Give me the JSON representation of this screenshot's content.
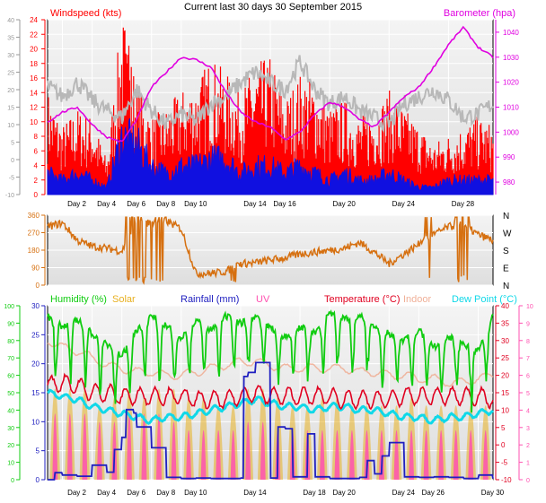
{
  "title": "Current last 30 days 30 September 2015",
  "colors": {
    "wind_avg": "#1010e0",
    "wind_gust": "#ff0000",
    "wind_max": "#b8b8b8",
    "barometer": "#e000e0",
    "direction": "#d67010",
    "humidity": "#10cc10",
    "solar": "#e8b020",
    "rainfall": "#2020c0",
    "uv": "#ff50b0",
    "temperature": "#e00020",
    "indoor": "#f0b098",
    "dewpoint": "#10d8e8"
  },
  "chart_data": [
    {
      "type": "line",
      "name": "wind-barometer",
      "legend": {
        "windspeed": "Windspeed (kts)",
        "barometer": "Barometer (hpa)"
      },
      "left_axis": {
        "range": [
          0,
          24
        ],
        "ticks": [
          "0",
          "2",
          "4",
          "6",
          "8",
          "10",
          "12",
          "14",
          "16",
          "18",
          "20",
          "22",
          "24"
        ]
      },
      "far_left_axis": {
        "range": [
          -10,
          40
        ],
        "ticks": [
          "-10",
          "-5",
          "0",
          "5",
          "10",
          "15",
          "20",
          "25",
          "30",
          "35",
          "40"
        ]
      },
      "right_axis": {
        "range": [
          975,
          1045
        ],
        "ticks": [
          "980",
          "990",
          "1000",
          "1010",
          "1020",
          "1030",
          "1040"
        ]
      },
      "x_range": [
        1,
        31
      ],
      "x_ticks": [
        {
          "day": 2,
          "label": "Day 2"
        },
        {
          "day": 4,
          "label": "Day 4"
        },
        {
          "day": 6,
          "label": "Day 6"
        },
        {
          "day": 8,
          "label": "Day 8"
        },
        {
          "day": 10,
          "label": "Day 10"
        },
        {
          "day": 14,
          "label": "Day 14"
        },
        {
          "day": 16,
          "label": "Day 16"
        },
        {
          "day": 20,
          "label": "Day 20"
        },
        {
          "day": 24,
          "label": "Day 24"
        },
        {
          "day": 28,
          "label": "Day 28"
        }
      ],
      "series": [
        {
          "key": "barometer",
          "axis": "right",
          "x": [
            1,
            2,
            3,
            4,
            5,
            6,
            7,
            8,
            9,
            10,
            11,
            12,
            13,
            14,
            15,
            16,
            17,
            18,
            19,
            20,
            21,
            22,
            23,
            24,
            25,
            26,
            27,
            28,
            29,
            30,
            31
          ],
          "values": [
            1004,
            1008,
            1010,
            1003,
            998,
            996,
            1005,
            1018,
            1024,
            1030,
            1029,
            1026,
            1016,
            1008,
            1004,
            1002,
            997,
            1000,
            1007,
            1012,
            1010,
            1005,
            1002,
            1008,
            1014,
            1018,
            1026,
            1035,
            1042,
            1034,
            1030
          ]
        },
        {
          "key": "wind_max",
          "axis": "far-left",
          "x": [
            1,
            2,
            3,
            4,
            5,
            6,
            7,
            8,
            9,
            10,
            11,
            12,
            13,
            14,
            15,
            16,
            17,
            18,
            19,
            20,
            21,
            22,
            23,
            24,
            25,
            26,
            27,
            28,
            29,
            30,
            31
          ],
          "values": [
            21,
            18,
            22,
            17,
            14,
            12,
            20,
            14,
            10,
            13,
            11,
            16,
            18,
            22,
            25,
            22,
            20,
            28,
            20,
            16,
            18,
            14,
            12,
            10,
            16,
            18,
            20,
            17,
            12,
            13,
            16
          ]
        },
        {
          "key": "wind_gust",
          "axis": "left",
          "x": [
            1,
            2,
            3,
            4,
            5,
            6,
            7,
            8,
            9,
            10,
            11,
            12,
            13,
            14,
            15,
            16,
            17,
            18,
            19,
            20,
            21,
            22,
            23,
            24,
            25,
            26,
            27,
            28,
            29,
            30,
            31
          ],
          "values": [
            12,
            8,
            10,
            9,
            4,
            21,
            13,
            9,
            10,
            12,
            13,
            16,
            14,
            12,
            15,
            16,
            11,
            14,
            13,
            10,
            11,
            9,
            10,
            12,
            10,
            8,
            6,
            7,
            8,
            9,
            8
          ]
        },
        {
          "key": "wind_avg",
          "axis": "left",
          "x": [
            1,
            2,
            3,
            4,
            5,
            6,
            7,
            8,
            9,
            10,
            11,
            12,
            13,
            14,
            15,
            16,
            17,
            18,
            19,
            20,
            21,
            22,
            23,
            24,
            25,
            26,
            27,
            28,
            29,
            30,
            31
          ],
          "values": [
            3,
            2,
            3,
            2,
            1,
            8,
            7,
            4,
            3,
            4,
            4,
            5,
            5,
            3,
            4,
            4,
            3,
            4,
            3,
            2,
            3,
            2,
            2,
            3,
            2,
            1,
            1,
            2,
            2,
            2,
            2
          ]
        }
      ]
    },
    {
      "type": "scatter",
      "name": "wind-direction",
      "left_axis": {
        "range": [
          0,
          360
        ],
        "ticks": [
          "0",
          "90",
          "180",
          "270",
          "360"
        ]
      },
      "right_labels": [
        "N",
        "W",
        "S",
        "E",
        "N"
      ],
      "x_range": [
        1,
        31
      ],
      "series": [
        {
          "key": "direction",
          "x": [
            1,
            2,
            3,
            4,
            5,
            6,
            7,
            8,
            9,
            10,
            11,
            12,
            13,
            14,
            15,
            16,
            17,
            18,
            19,
            20,
            21,
            22,
            23,
            24,
            25,
            26,
            27,
            28,
            29,
            30,
            31
          ],
          "values": [
            300,
            320,
            230,
            200,
            190,
            175,
            320,
            320,
            330,
            290,
            60,
            60,
            70,
            110,
            115,
            130,
            140,
            160,
            170,
            180,
            190,
            220,
            170,
            110,
            160,
            210,
            260,
            300,
            310,
            260,
            230
          ]
        }
      ]
    },
    {
      "type": "line",
      "name": "humidity-temperature",
      "legend": {
        "humidity": "Humidity (%)",
        "solar": "Solar",
        "rainfall": "Rainfall (mm)",
        "uv": "UV",
        "temperature": "Temperature (°C)",
        "indoor": "Indoor",
        "dewpoint": "Dew Point (°C)"
      },
      "humidity_axis": {
        "range": [
          0,
          100
        ],
        "ticks": [
          "0",
          "10",
          "20",
          "30",
          "40",
          "50",
          "60",
          "70",
          "80",
          "90",
          "100"
        ]
      },
      "rain_axis": {
        "range": [
          0,
          30
        ],
        "ticks": [
          "0",
          "5",
          "10",
          "15",
          "20",
          "25",
          "30"
        ]
      },
      "temp_axis": {
        "range": [
          -10,
          40
        ],
        "ticks": [
          "-10",
          "-5",
          "0",
          "5",
          "10",
          "15",
          "20",
          "25",
          "30",
          "35",
          "40"
        ]
      },
      "uv_axis": {
        "range": [
          0,
          10
        ],
        "ticks": [
          "0",
          "1",
          "2",
          "3",
          "4",
          "5",
          "6",
          "7",
          "8",
          "9",
          "10"
        ]
      },
      "x_range": [
        1,
        31
      ],
      "x_ticks": [
        {
          "day": 2,
          "label": "Day 2"
        },
        {
          "day": 4,
          "label": "Day 4"
        },
        {
          "day": 6,
          "label": "Day 6"
        },
        {
          "day": 8,
          "label": "Day 8"
        },
        {
          "day": 10,
          "label": "Day 10"
        },
        {
          "day": 14,
          "label": "Day 14"
        },
        {
          "day": 18,
          "label": "Day 18"
        },
        {
          "day": 20,
          "label": "Day 20"
        },
        {
          "day": 24,
          "label": "Day 24"
        },
        {
          "day": 26,
          "label": "Day 26"
        },
        {
          "day": 30,
          "label": "Day 30"
        }
      ],
      "series": [
        {
          "key": "humidity",
          "axis": "humidity",
          "x": [
            1,
            2,
            3,
            4,
            5,
            6,
            7,
            8,
            9,
            10,
            11,
            12,
            13,
            14,
            15,
            16,
            17,
            18,
            19,
            20,
            21,
            22,
            23,
            24,
            25,
            26,
            27,
            28,
            29,
            30,
            31
          ],
          "values": [
            88,
            82,
            86,
            78,
            72,
            65,
            80,
            88,
            82,
            76,
            85,
            80,
            88,
            84,
            88,
            82,
            76,
            82,
            78,
            90,
            86,
            88,
            82,
            78,
            74,
            80,
            70,
            76,
            72,
            68,
            88
          ]
        },
        {
          "key": "indoor",
          "axis": "temp",
          "x": [
            1,
            2,
            3,
            4,
            5,
            6,
            7,
            8,
            9,
            10,
            11,
            12,
            13,
            14,
            15,
            16,
            17,
            18,
            19,
            20,
            21,
            22,
            23,
            24,
            25,
            26,
            27,
            28,
            29,
            30,
            31
          ],
          "values": [
            30,
            28,
            27,
            25,
            23,
            22,
            21,
            21,
            20,
            20,
            21,
            22,
            23,
            24,
            24,
            23,
            22,
            22,
            22,
            22,
            22,
            21,
            21,
            20,
            20,
            19,
            19,
            18,
            18,
            19,
            20
          ]
        },
        {
          "key": "temperature",
          "axis": "temp",
          "x": [
            1,
            2,
            3,
            4,
            5,
            6,
            7,
            8,
            9,
            10,
            11,
            12,
            13,
            14,
            15,
            16,
            17,
            18,
            19,
            20,
            21,
            22,
            23,
            24,
            25,
            26,
            27,
            28,
            29,
            30,
            31
          ],
          "values": [
            17,
            18,
            17,
            15,
            15,
            14,
            14,
            14,
            14,
            14,
            13,
            13,
            13,
            14,
            15,
            14,
            14,
            14,
            14,
            14,
            13,
            13,
            13,
            13,
            14,
            14,
            14,
            14,
            14,
            14,
            13
          ]
        },
        {
          "key": "dewpoint",
          "axis": "temp",
          "x": [
            1,
            2,
            3,
            4,
            5,
            6,
            7,
            8,
            9,
            10,
            11,
            12,
            13,
            14,
            15,
            16,
            17,
            18,
            19,
            20,
            21,
            22,
            23,
            24,
            25,
            26,
            27,
            28,
            29,
            30,
            31
          ],
          "values": [
            15,
            14,
            13,
            11,
            10,
            9,
            8,
            7,
            8,
            8,
            9,
            10,
            11,
            12,
            13,
            12,
            11,
            11,
            10,
            11,
            11,
            10,
            10,
            9,
            8,
            8,
            7,
            8,
            8,
            9,
            10
          ]
        },
        {
          "key": "rainfall",
          "axis": "rain",
          "x": [
            1,
            1.5,
            2,
            3,
            3.5,
            4,
            4.5,
            5,
            5.5,
            6,
            6.3,
            6.8,
            7,
            8,
            9,
            10,
            11,
            12,
            13,
            14,
            14.2,
            14.5,
            15,
            16,
            16.5,
            17,
            17.5,
            18,
            18.5,
            19,
            20,
            21,
            22,
            22.5,
            23,
            23.5,
            24,
            25,
            26,
            27,
            28,
            29,
            30,
            31
          ],
          "values": [
            0,
            1.2,
            0.8,
            0.6,
            0.6,
            2.5,
            2.5,
            1.3,
            5.2,
            7.3,
            12.1,
            11.5,
            9.1,
            5.5,
            0.4,
            0.2,
            0.3,
            0.2,
            0.2,
            0.3,
            17.8,
            18.5,
            20.2,
            0.3,
            9.1,
            8.8,
            0.5,
            0.5,
            7.9,
            0.5,
            0.2,
            0.2,
            0.4,
            3.3,
            1.0,
            4.1,
            6.4,
            0.5,
            0.4,
            0.5,
            0.4,
            0.2,
            0.8,
            0.2
          ]
        },
        {
          "key": "solar",
          "axis": "uv",
          "x": [
            1,
            2,
            3,
            4,
            5,
            6,
            7,
            8,
            9,
            10,
            11,
            12,
            13,
            14,
            15,
            16,
            17,
            18,
            19,
            20,
            21,
            22,
            23,
            24,
            25,
            26,
            27,
            28,
            29,
            30,
            31
          ],
          "values": [
            6,
            5,
            6,
            5,
            4,
            6,
            5,
            5,
            6,
            5,
            5,
            5,
            4,
            5,
            6,
            5,
            5,
            4,
            5,
            5,
            5,
            4,
            5,
            4,
            5,
            5,
            4,
            5,
            4,
            5,
            4
          ]
        },
        {
          "key": "uv",
          "axis": "uv",
          "x": [
            1,
            2,
            3,
            4,
            5,
            6,
            7,
            8,
            9,
            10,
            11,
            12,
            13,
            14,
            15,
            16,
            17,
            18,
            19,
            20,
            21,
            22,
            23,
            24,
            25,
            26,
            27,
            28,
            29,
            30,
            31
          ],
          "values": [
            4,
            4,
            4,
            4,
            3,
            4,
            4,
            4,
            4,
            3,
            3,
            3,
            3,
            3,
            4,
            3,
            3,
            3,
            3,
            3,
            3,
            3,
            3,
            3,
            3,
            3,
            3,
            3,
            3,
            3,
            3
          ]
        }
      ]
    }
  ]
}
